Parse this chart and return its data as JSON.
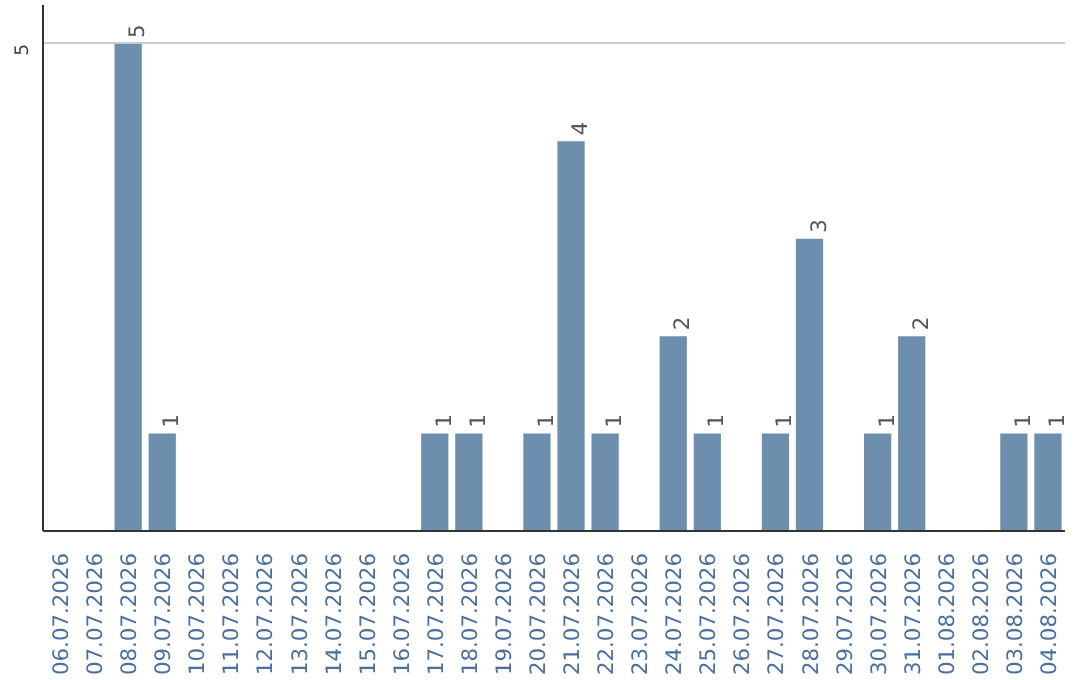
{
  "chart_data": {
    "type": "bar",
    "categories": [
      "06.07.2026",
      "07.07.2026",
      "08.07.2026",
      "09.07.2026",
      "10.07.2026",
      "11.07.2026",
      "12.07.2026",
      "13.07.2026",
      "14.07.2026",
      "15.07.2026",
      "16.07.2026",
      "17.07.2026",
      "18.07.2026",
      "19.07.2026",
      "20.07.2026",
      "21.07.2026",
      "22.07.2026",
      "23.07.2026",
      "24.07.2026",
      "25.07.2026",
      "26.07.2026",
      "27.07.2026",
      "28.07.2026",
      "29.07.2026",
      "30.07.2026",
      "31.07.2026",
      "01.08.2026",
      "02.08.2026",
      "03.08.2026",
      "04.08.2026"
    ],
    "values": [
      null,
      null,
      5,
      1,
      null,
      null,
      null,
      null,
      null,
      null,
      null,
      1,
      1,
      null,
      1,
      4,
      1,
      null,
      2,
      1,
      null,
      1,
      3,
      null,
      1,
      2,
      null,
      null,
      1,
      1
    ],
    "color": "#6d8eac",
    "ylim": [
      0,
      5.4
    ],
    "yticks": [
      5
    ],
    "grid": "y",
    "data_labels": true
  }
}
